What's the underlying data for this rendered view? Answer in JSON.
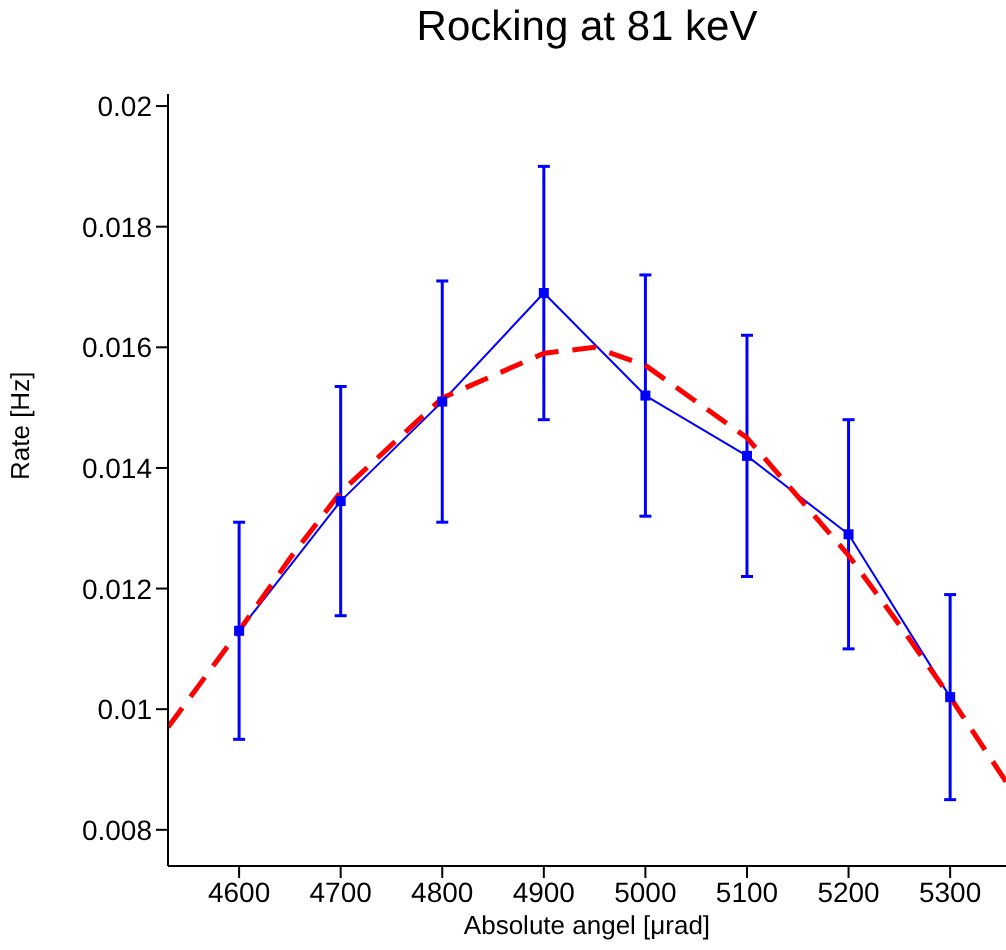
{
  "chart_data": {
    "type": "line",
    "title": "Rocking at 81 keV",
    "xlabel": "Absolute angel [μrad]",
    "ylabel": "Rate [Hz]",
    "x": [
      4600,
      4700,
      4800,
      4900,
      5000,
      5100,
      5200,
      5300
    ],
    "xlim": [
      4530,
      5355
    ],
    "xticks": [
      4600,
      4700,
      4800,
      4900,
      5000,
      5100,
      5200,
      5300
    ],
    "ylim": [
      0.0074,
      0.0202
    ],
    "yticks": [
      0.008,
      0.01,
      0.012,
      0.014,
      0.016,
      0.018,
      0.02
    ],
    "grid": false,
    "legend": false,
    "series": [
      {
        "color": "#0000ff",
        "marker": "square",
        "line_style": "solid",
        "values": [
          0.0113,
          0.01345,
          0.0151,
          0.0169,
          0.0152,
          0.0142,
          0.0129,
          0.0102
        ],
        "errors": [
          0.0018,
          0.0019,
          0.002,
          0.0021,
          0.002,
          0.002,
          0.0019,
          0.0017
        ]
      },
      {
        "type": "line",
        "color": "#ff0000",
        "marker": "none",
        "line_style": "dashed",
        "x": [
          4530,
          4600,
          4650,
          4700,
          4800,
          4900,
          4950,
          5000,
          5100,
          5200,
          5250,
          5300,
          5355
        ],
        "values": [
          0.0097,
          0.0113,
          0.0125,
          0.0136,
          0.01516,
          0.0159,
          0.016,
          0.0157,
          0.0145,
          0.01255,
          0.0114,
          0.0102,
          0.0088
        ]
      }
    ]
  }
}
